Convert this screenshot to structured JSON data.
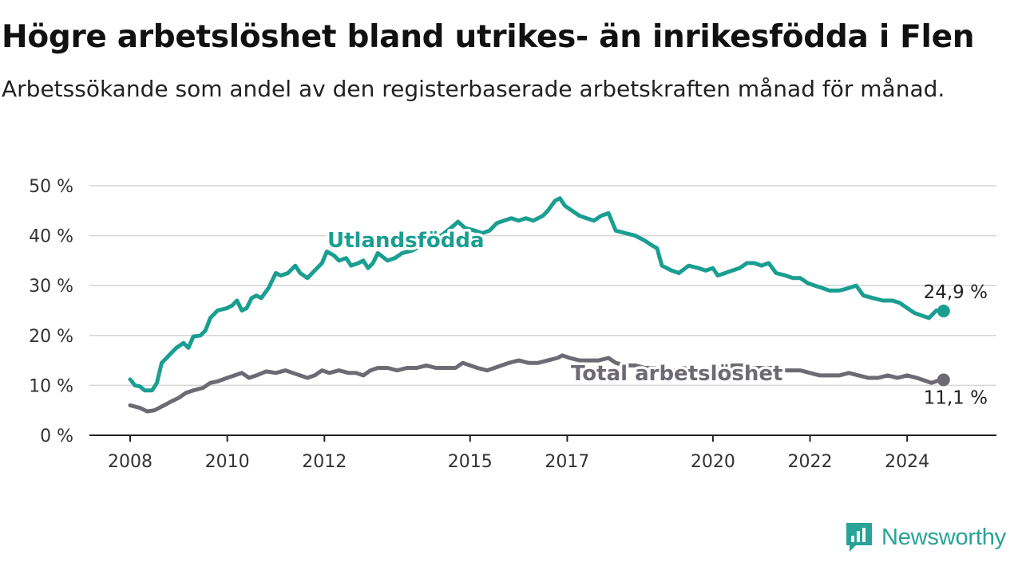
{
  "title": "Högre arbetslöshet bland utrikes- än inrikesfödda i Flen",
  "subtitle": "Arbetssökande som andel av den registerbaserade arbetskraften månad för månad.",
  "brand": {
    "name": "Newsworthy",
    "icon": "newsworthy-logo-icon",
    "color": "#27a397"
  },
  "chart_data": {
    "type": "line",
    "title": "Högre arbetslöshet bland utrikes- än inrikesfödda i Flen",
    "subtitle": "Arbetssökande som andel av den registerbaserade arbetskraften månad för månad.",
    "xlabel": "",
    "ylabel": "",
    "ylim": [
      0,
      50
    ],
    "xlim": [
      2008,
      2025
    ],
    "grid": "horizontal",
    "legend": "none (direct labels)",
    "y_ticks": [
      0,
      10,
      20,
      30,
      40,
      50
    ],
    "y_tick_labels": [
      "0 %",
      "10 %",
      "20 %",
      "30 %",
      "40 %",
      "50 %"
    ],
    "x_ticks": [
      2008,
      2010,
      2012,
      2015,
      2017,
      2020,
      2022,
      2024
    ],
    "x_tick_labels": [
      "2008",
      "2010",
      "2012",
      "2015",
      "2017",
      "2020",
      "2022",
      "2024"
    ],
    "series": [
      {
        "name": "Utlandsfödda",
        "color": "#1a9e91",
        "end_label": "24,9 %",
        "points": [
          [
            2008.0,
            11.2
          ],
          [
            2008.1,
            10.0
          ],
          [
            2008.2,
            9.8
          ],
          [
            2008.3,
            9.0
          ],
          [
            2008.45,
            9.0
          ],
          [
            2008.55,
            10.5
          ],
          [
            2008.65,
            14.5
          ],
          [
            2008.8,
            16.0
          ],
          [
            2008.95,
            17.5
          ],
          [
            2009.1,
            18.5
          ],
          [
            2009.2,
            17.5
          ],
          [
            2009.3,
            19.8
          ],
          [
            2009.45,
            20.0
          ],
          [
            2009.55,
            21.0
          ],
          [
            2009.65,
            23.5
          ],
          [
            2009.8,
            25.0
          ],
          [
            2010.0,
            25.5
          ],
          [
            2010.1,
            26.0
          ],
          [
            2010.2,
            27.0
          ],
          [
            2010.3,
            25.0
          ],
          [
            2010.4,
            25.5
          ],
          [
            2010.5,
            27.5
          ],
          [
            2010.6,
            28.0
          ],
          [
            2010.7,
            27.5
          ],
          [
            2010.85,
            29.5
          ],
          [
            2011.0,
            32.5
          ],
          [
            2011.1,
            32.0
          ],
          [
            2011.25,
            32.5
          ],
          [
            2011.4,
            34.0
          ],
          [
            2011.5,
            32.5
          ],
          [
            2011.65,
            31.5
          ],
          [
            2011.8,
            33.0
          ],
          [
            2011.95,
            34.5
          ],
          [
            2012.05,
            36.8
          ],
          [
            2012.2,
            36.0
          ],
          [
            2012.3,
            35.0
          ],
          [
            2012.45,
            35.5
          ],
          [
            2012.55,
            34.0
          ],
          [
            2012.7,
            34.5
          ],
          [
            2012.8,
            35.0
          ],
          [
            2012.9,
            33.5
          ],
          [
            2013.0,
            34.5
          ],
          [
            2013.1,
            36.5
          ],
          [
            2013.3,
            35.0
          ],
          [
            2013.45,
            35.5
          ],
          [
            2013.6,
            36.5
          ],
          [
            2013.8,
            37.0
          ],
          [
            2014.0,
            38.0
          ],
          [
            2014.2,
            39.5
          ],
          [
            2014.4,
            40.0
          ],
          [
            2014.6,
            41.5
          ],
          [
            2014.75,
            42.8
          ],
          [
            2014.9,
            41.5
          ],
          [
            2015.1,
            41.0
          ],
          [
            2015.25,
            40.5
          ],
          [
            2015.4,
            41.0
          ],
          [
            2015.55,
            42.5
          ],
          [
            2015.7,
            43.0
          ],
          [
            2015.85,
            43.5
          ],
          [
            2016.0,
            43.0
          ],
          [
            2016.15,
            43.5
          ],
          [
            2016.3,
            43.0
          ],
          [
            2016.5,
            44.0
          ],
          [
            2016.6,
            45.0
          ],
          [
            2016.75,
            47.0
          ],
          [
            2016.85,
            47.5
          ],
          [
            2016.95,
            46.0
          ],
          [
            2017.1,
            45.0
          ],
          [
            2017.25,
            44.0
          ],
          [
            2017.4,
            43.5
          ],
          [
            2017.55,
            43.0
          ],
          [
            2017.7,
            44.0
          ],
          [
            2017.85,
            44.5
          ],
          [
            2018.0,
            41.0
          ],
          [
            2018.2,
            40.5
          ],
          [
            2018.4,
            40.0
          ],
          [
            2018.6,
            39.0
          ],
          [
            2018.75,
            38.0
          ],
          [
            2018.85,
            37.5
          ],
          [
            2018.95,
            34.0
          ],
          [
            2019.15,
            33.0
          ],
          [
            2019.3,
            32.5
          ],
          [
            2019.5,
            34.0
          ],
          [
            2019.7,
            33.5
          ],
          [
            2019.85,
            33.0
          ],
          [
            2020.0,
            33.5
          ],
          [
            2020.1,
            32.0
          ],
          [
            2020.25,
            32.5
          ],
          [
            2020.4,
            33.0
          ],
          [
            2020.55,
            33.5
          ],
          [
            2020.7,
            34.5
          ],
          [
            2020.85,
            34.5
          ],
          [
            2021.0,
            34.0
          ],
          [
            2021.15,
            34.5
          ],
          [
            2021.3,
            32.5
          ],
          [
            2021.5,
            32.0
          ],
          [
            2021.65,
            31.5
          ],
          [
            2021.8,
            31.5
          ],
          [
            2021.95,
            30.5
          ],
          [
            2022.1,
            30.0
          ],
          [
            2022.25,
            29.5
          ],
          [
            2022.4,
            29.0
          ],
          [
            2022.6,
            29.0
          ],
          [
            2022.8,
            29.5
          ],
          [
            2022.95,
            30.0
          ],
          [
            2023.1,
            28.0
          ],
          [
            2023.3,
            27.5
          ],
          [
            2023.5,
            27.0
          ],
          [
            2023.7,
            27.0
          ],
          [
            2023.85,
            26.5
          ],
          [
            2024.0,
            25.5
          ],
          [
            2024.15,
            24.5
          ],
          [
            2024.3,
            24.0
          ],
          [
            2024.45,
            23.5
          ],
          [
            2024.6,
            25.0
          ],
          [
            2024.75,
            24.9
          ]
        ]
      },
      {
        "name": "Total arbetslöshet",
        "color": "#6d6a74",
        "end_label": "11,1 %",
        "points": [
          [
            2008.0,
            6.0
          ],
          [
            2008.2,
            5.5
          ],
          [
            2008.35,
            4.8
          ],
          [
            2008.5,
            5.0
          ],
          [
            2008.7,
            6.0
          ],
          [
            2008.85,
            6.8
          ],
          [
            2009.0,
            7.5
          ],
          [
            2009.15,
            8.5
          ],
          [
            2009.3,
            9.0
          ],
          [
            2009.5,
            9.5
          ],
          [
            2009.65,
            10.5
          ],
          [
            2009.8,
            10.8
          ],
          [
            2010.0,
            11.5
          ],
          [
            2010.15,
            12.0
          ],
          [
            2010.3,
            12.5
          ],
          [
            2010.45,
            11.5
          ],
          [
            2010.6,
            12.0
          ],
          [
            2010.8,
            12.8
          ],
          [
            2011.0,
            12.5
          ],
          [
            2011.2,
            13.0
          ],
          [
            2011.35,
            12.5
          ],
          [
            2011.5,
            12.0
          ],
          [
            2011.65,
            11.5
          ],
          [
            2011.8,
            12.0
          ],
          [
            2011.95,
            13.0
          ],
          [
            2012.1,
            12.5
          ],
          [
            2012.3,
            13.0
          ],
          [
            2012.5,
            12.5
          ],
          [
            2012.65,
            12.5
          ],
          [
            2012.8,
            12.0
          ],
          [
            2012.95,
            13.0
          ],
          [
            2013.1,
            13.5
          ],
          [
            2013.3,
            13.5
          ],
          [
            2013.5,
            13.0
          ],
          [
            2013.7,
            13.5
          ],
          [
            2013.9,
            13.5
          ],
          [
            2014.1,
            14.0
          ],
          [
            2014.3,
            13.5
          ],
          [
            2014.5,
            13.5
          ],
          [
            2014.7,
            13.5
          ],
          [
            2014.85,
            14.5
          ],
          [
            2015.0,
            14.0
          ],
          [
            2015.15,
            13.5
          ],
          [
            2015.35,
            13.0
          ],
          [
            2015.5,
            13.5
          ],
          [
            2015.65,
            14.0
          ],
          [
            2015.8,
            14.5
          ],
          [
            2016.0,
            15.0
          ],
          [
            2016.2,
            14.5
          ],
          [
            2016.4,
            14.5
          ],
          [
            2016.6,
            15.0
          ],
          [
            2016.8,
            15.5
          ],
          [
            2016.9,
            16.0
          ],
          [
            2017.05,
            15.5
          ],
          [
            2017.25,
            15.0
          ],
          [
            2017.45,
            15.0
          ],
          [
            2017.65,
            15.0
          ],
          [
            2017.85,
            15.5
          ],
          [
            2018.0,
            14.5
          ],
          [
            2018.2,
            14.0
          ],
          [
            2018.4,
            14.0
          ],
          [
            2018.6,
            13.5
          ],
          [
            2018.8,
            13.5
          ],
          [
            2019.0,
            13.0
          ],
          [
            2019.2,
            13.0
          ],
          [
            2019.4,
            13.5
          ],
          [
            2019.6,
            13.0
          ],
          [
            2019.8,
            13.0
          ],
          [
            2020.0,
            13.5
          ],
          [
            2020.2,
            13.5
          ],
          [
            2020.4,
            14.0
          ],
          [
            2020.6,
            14.0
          ],
          [
            2020.8,
            13.5
          ],
          [
            2021.0,
            13.5
          ],
          [
            2021.2,
            13.5
          ],
          [
            2021.4,
            13.0
          ],
          [
            2021.6,
            13.0
          ],
          [
            2021.8,
            13.0
          ],
          [
            2022.0,
            12.5
          ],
          [
            2022.2,
            12.0
          ],
          [
            2022.4,
            12.0
          ],
          [
            2022.6,
            12.0
          ],
          [
            2022.8,
            12.5
          ],
          [
            2023.0,
            12.0
          ],
          [
            2023.2,
            11.5
          ],
          [
            2023.4,
            11.5
          ],
          [
            2023.6,
            12.0
          ],
          [
            2023.8,
            11.5
          ],
          [
            2024.0,
            12.0
          ],
          [
            2024.2,
            11.5
          ],
          [
            2024.35,
            11.0
          ],
          [
            2024.5,
            10.5
          ],
          [
            2024.65,
            11.0
          ],
          [
            2024.75,
            11.1
          ]
        ]
      }
    ]
  }
}
